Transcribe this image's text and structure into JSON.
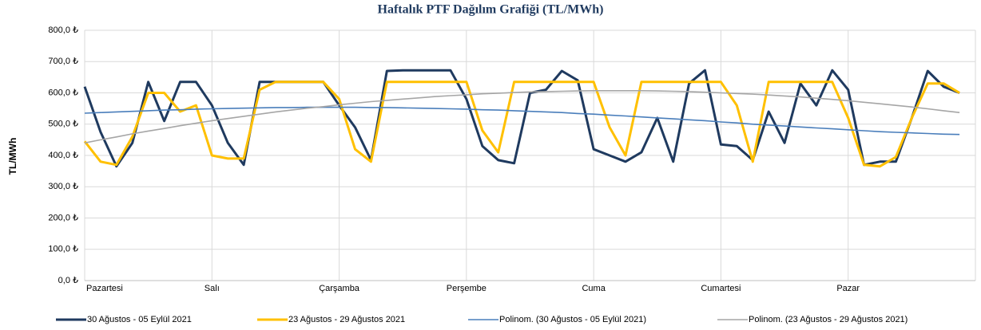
{
  "chart_data": {
    "type": "line",
    "title": "Haftalık PTF Dağılım Grafiği (TL/MWh)",
    "y_label": "TL/MWh",
    "x": [
      0,
      3,
      6,
      9,
      12,
      15,
      18,
      21,
      24,
      27,
      30,
      33,
      36,
      39,
      42,
      45,
      48,
      51,
      54,
      57,
      60,
      63,
      66,
      69,
      72,
      75,
      78,
      81,
      84,
      87,
      90,
      93,
      96,
      99,
      102,
      105,
      108,
      111,
      114,
      117,
      120,
      123,
      126,
      129,
      132,
      135,
      138,
      141,
      144,
      147,
      150,
      153,
      156,
      159,
      162,
      165
    ],
    "xlim": [
      0,
      168
    ],
    "xticks": [
      {
        "value": 0,
        "label": "Pazartesi"
      },
      {
        "value": 24,
        "label": "Salı"
      },
      {
        "value": 48,
        "label": "Çarşamba"
      },
      {
        "value": 72,
        "label": "Perşembe"
      },
      {
        "value": 96,
        "label": "Cuma"
      },
      {
        "value": 120,
        "label": "Cumartesi"
      },
      {
        "value": 144,
        "label": "Pazar"
      }
    ],
    "ylim": [
      0,
      800
    ],
    "yticks": [
      {
        "value": 0,
        "label": "0,0 ₺"
      },
      {
        "value": 100,
        "label": "100,0 ₺"
      },
      {
        "value": 200,
        "label": "200,0 ₺"
      },
      {
        "value": 300,
        "label": "300,0 ₺"
      },
      {
        "value": 400,
        "label": "400,0 ₺"
      },
      {
        "value": 500,
        "label": "500,0 ₺"
      },
      {
        "value": 600,
        "label": "600,0 ₺"
      },
      {
        "value": 700,
        "label": "700,0 ₺"
      },
      {
        "value": 800,
        "label": "800,0 ₺"
      }
    ],
    "grid": true,
    "legend": "bottom",
    "series": [
      {
        "name": "30 Ağustos - 05 Eylül 2021",
        "color": "#1f3a5f",
        "width": 3,
        "values": [
          620,
          475,
          365,
          440,
          635,
          510,
          635,
          635,
          560,
          440,
          370,
          635,
          635,
          635,
          635,
          635,
          560,
          490,
          385,
          670,
          672,
          672,
          672,
          672,
          580,
          430,
          385,
          375,
          600,
          610,
          670,
          640,
          420,
          400,
          380,
          410,
          520,
          380,
          630,
          672,
          435,
          430,
          385,
          540,
          440,
          630,
          560,
          672,
          610,
          370,
          380,
          380,
          520,
          670,
          620,
          600
        ]
      },
      {
        "name": "23 Ağustos - 29 Ağustos 2021",
        "color": "#ffc000",
        "width": 3,
        "values": [
          445,
          380,
          370,
          460,
          600,
          600,
          540,
          560,
          400,
          390,
          390,
          610,
          635,
          635,
          635,
          635,
          580,
          420,
          380,
          635,
          635,
          635,
          635,
          635,
          635,
          480,
          410,
          635,
          635,
          635,
          635,
          635,
          635,
          490,
          400,
          635,
          635,
          635,
          635,
          635,
          635,
          560,
          380,
          635,
          635,
          635,
          635,
          635,
          520,
          370,
          365,
          395,
          520,
          630,
          630,
          600
        ]
      },
      {
        "name": "Polinom. (30 Ağustos - 05 Eylül 2021)",
        "color": "#4a7ebb",
        "width": 1.6,
        "values": [
          535,
          537,
          539,
          541,
          543,
          545,
          546,
          548,
          549,
          550,
          551,
          552,
          553,
          553,
          554,
          554,
          554,
          554,
          553,
          553,
          552,
          551,
          550,
          549,
          548,
          546,
          545,
          543,
          541,
          539,
          537,
          534,
          532,
          529,
          526,
          523,
          520,
          517,
          514,
          511,
          507,
          504,
          500,
          497,
          494,
          491,
          488,
          485,
          482,
          479,
          476,
          474,
          472,
          470,
          468,
          467
        ]
      },
      {
        "name": "Polinom. (23 Ağustos - 29 Ağustos 2021)",
        "color": "#a6a6a6",
        "width": 1.6,
        "values": [
          440,
          450,
          459,
          469,
          478,
          486,
          495,
          503,
          511,
          518,
          525,
          532,
          539,
          545,
          551,
          556,
          562,
          567,
          572,
          576,
          580,
          584,
          588,
          591,
          594,
          597,
          599,
          601,
          603,
          604,
          605,
          606,
          607,
          607,
          607,
          607,
          606,
          605,
          604,
          602,
          600,
          598,
          596,
          593,
          590,
          587,
          583,
          579,
          575,
          570,
          565,
          560,
          555,
          549,
          543,
          537
        ]
      }
    ]
  }
}
